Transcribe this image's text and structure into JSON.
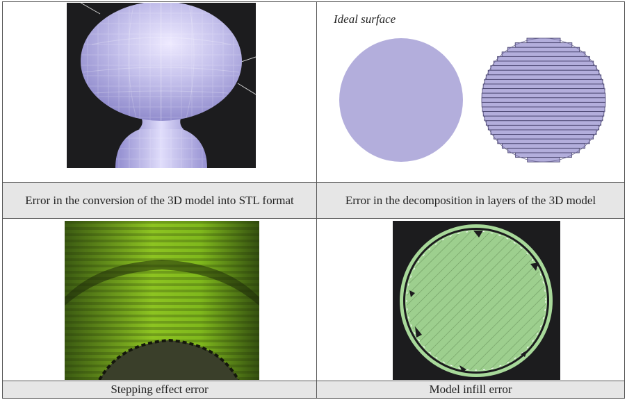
{
  "figure": {
    "cells": [
      {
        "caption": "Error in the conversion of the 3D model into STL format",
        "image": "faceted-sphere-render"
      },
      {
        "caption": "Error in the decomposition in layers of the 3D model",
        "label": "Ideal surface",
        "image": "ideal-vs-layered-circle"
      },
      {
        "caption": "Stepping effect error",
        "image": "stepping-layers-photo"
      },
      {
        "caption": "Model infill error",
        "image": "infill-slice-render"
      }
    ],
    "colors": {
      "lavender": "#b3aedc",
      "green": "#9dcf8e",
      "dark": "#1c1c1e",
      "caption_bg": "#e6e6e6"
    }
  }
}
